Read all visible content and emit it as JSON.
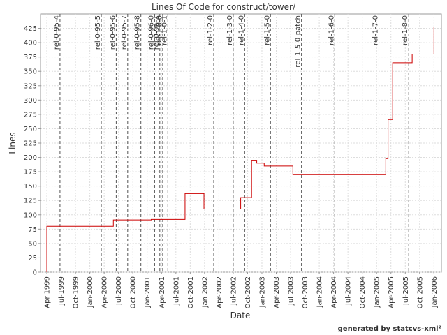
{
  "chart_data": {
    "type": "line",
    "step": "post",
    "title": "Lines Of Code for construct/tower/",
    "xlabel": "Date",
    "ylabel": "Lines",
    "footer": "generated by statcvs-xml²",
    "grid": true,
    "series": [
      {
        "name": "Lines",
        "color": "#cc0000",
        "x": [
          1999.25,
          1999.25,
          2000.41,
          2001.07,
          2001.66,
          2001.99,
          2002.63,
          2002.82,
          2002.91,
          2003.04,
          2003.54,
          2005.16,
          2005.2,
          2005.28,
          2005.62,
          2006.0
        ],
        "values": [
          0,
          80,
          91,
          92,
          137,
          110,
          130,
          195,
          190,
          185,
          170,
          198,
          266,
          365,
          380,
          427
        ]
      }
    ],
    "markers": [
      {
        "label": "rel-0-95-4",
        "x": 1999.48
      },
      {
        "label": "rel-0-95-5",
        "x": 2000.2
      },
      {
        "label": "rel-0-95-6",
        "x": 2000.46
      },
      {
        "label": "rel-0-95-7",
        "x": 2000.66
      },
      {
        "label": "rel-0-95-8",
        "x": 2000.89
      },
      {
        "label": "rel-0-96-0",
        "x": 2001.13
      },
      {
        "label": "rel-0-96-1",
        "x": 2001.22
      },
      {
        "label": "rel-1-0-0",
        "x": 2001.27
      },
      {
        "label": "rel-1-0-1",
        "x": 2001.36
      },
      {
        "label": "rel-1-2-0",
        "x": 2002.16
      },
      {
        "label": "rel-1-3-0",
        "x": 2002.5
      },
      {
        "label": "rel-1-4-0",
        "x": 2002.7
      },
      {
        "label": "rel-1-5-0",
        "x": 2003.15
      },
      {
        "label": "rel-1-5-0-patch",
        "x": 2003.69
      },
      {
        "label": "rel-1-6-0",
        "x": 2004.27
      },
      {
        "label": "rel-1-7-0",
        "x": 2005.04
      },
      {
        "label": "rel-1-8-0",
        "x": 2005.56
      }
    ],
    "xlim": [
      1999.14,
      2006.13
    ],
    "ylim": [
      0,
      450
    ],
    "yticks": [
      0,
      25,
      50,
      75,
      100,
      125,
      150,
      175,
      200,
      225,
      250,
      275,
      300,
      325,
      350,
      375,
      400,
      425
    ],
    "xticks": [
      {
        "value": 1999.25,
        "label": "Apr-1999"
      },
      {
        "value": 1999.5,
        "label": "Jul-1999"
      },
      {
        "value": 1999.75,
        "label": "Oct-1999"
      },
      {
        "value": 2000.0,
        "label": "Jan-2000"
      },
      {
        "value": 2000.25,
        "label": "Apr-2000"
      },
      {
        "value": 2000.5,
        "label": "Jul-2000"
      },
      {
        "value": 2000.75,
        "label": "Oct-2000"
      },
      {
        "value": 2001.0,
        "label": "Jan-2001"
      },
      {
        "value": 2001.25,
        "label": "Apr-2001"
      },
      {
        "value": 2001.5,
        "label": "Jul-2001"
      },
      {
        "value": 2001.75,
        "label": "Oct-2001"
      },
      {
        "value": 2002.0,
        "label": "Jan-2002"
      },
      {
        "value": 2002.25,
        "label": "Apr-2002"
      },
      {
        "value": 2002.5,
        "label": "Jul-2002"
      },
      {
        "value": 2002.75,
        "label": "Oct-2002"
      },
      {
        "value": 2003.0,
        "label": "Jan-2003"
      },
      {
        "value": 2003.25,
        "label": "Apr-2003"
      },
      {
        "value": 2003.5,
        "label": "Jul-2003"
      },
      {
        "value": 2003.75,
        "label": "Oct-2003"
      },
      {
        "value": 2004.0,
        "label": "Jan-2004"
      },
      {
        "value": 2004.25,
        "label": "Apr-2004"
      },
      {
        "value": 2004.5,
        "label": "Jul-2004"
      },
      {
        "value": 2004.75,
        "label": "Oct-2004"
      },
      {
        "value": 2005.0,
        "label": "Jan-2005"
      },
      {
        "value": 2005.25,
        "label": "Apr-2005"
      },
      {
        "value": 2005.5,
        "label": "Jul-2005"
      },
      {
        "value": 2005.75,
        "label": "Oct-2005"
      },
      {
        "value": 2006.0,
        "label": "Jan-2006"
      }
    ]
  }
}
